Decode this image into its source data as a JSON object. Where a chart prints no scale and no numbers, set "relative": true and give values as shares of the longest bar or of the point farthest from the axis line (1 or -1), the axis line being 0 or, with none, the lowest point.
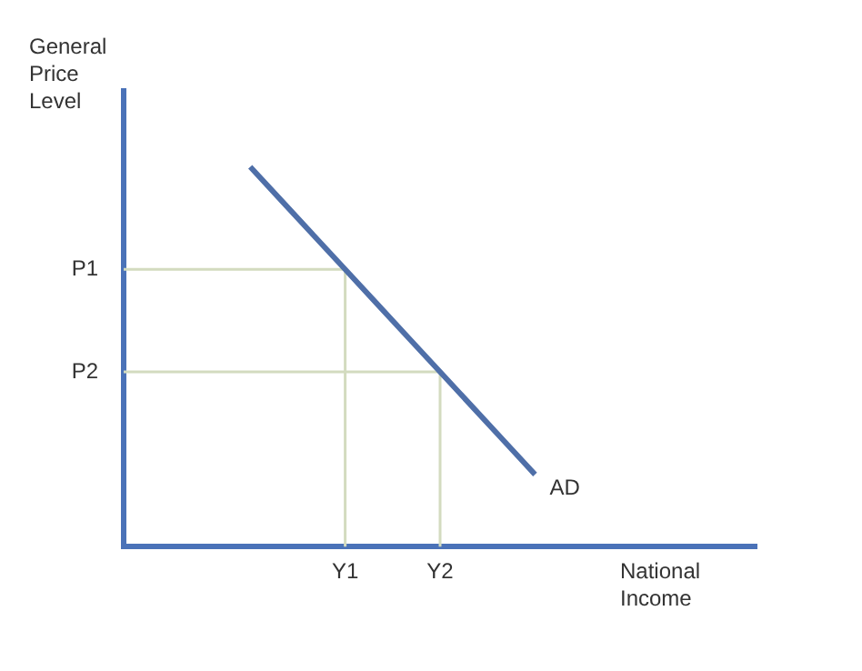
{
  "chart_data": {
    "type": "line",
    "xlabel": "National Income",
    "ylabel": "General Price Level",
    "relative": true,
    "categories": [
      null,
      null,
      null,
      null,
      null,
      null,
      null,
      null,
      null,
      null,
      null,
      null,
      null,
      null,
      null,
      null,
      null,
      null,
      null,
      null,
      null
    ],
    "series": [
      {
        "values": [
          null,
          null,
          null,
          null,
          1,
          0.91,
          0.82,
          0.73,
          0.64,
          0.55,
          0.46,
          0.37,
          0.28,
          0.19,
          null,
          null,
          null,
          null,
          null,
          null,
          null
        ],
        "color": "#4f6fa8"
      }
    ],
    "ref_lines": [
      {
        "axis": "y",
        "value": 0.73,
        "label": "P1",
        "color": "#d3dbbf"
      },
      {
        "axis": "y",
        "value": 0.46,
        "label": "P2",
        "color": "#d3dbbf"
      }
    ],
    "annotations": [
      "AD",
      "Y1",
      "Y2"
    ],
    "legend": false,
    "marker": "none",
    "line_style": "solid"
  }
}
